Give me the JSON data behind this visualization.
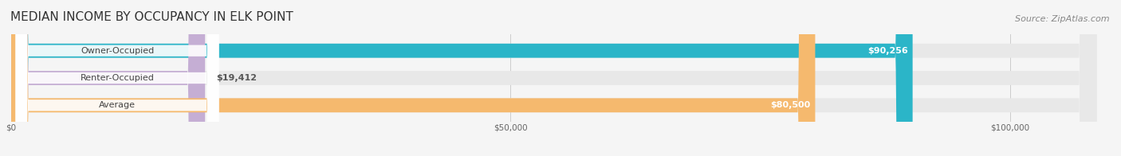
{
  "title": "MEDIAN INCOME BY OCCUPANCY IN ELK POINT",
  "source": "Source: ZipAtlas.com",
  "categories": [
    "Owner-Occupied",
    "Renter-Occupied",
    "Average"
  ],
  "values": [
    90256,
    19412,
    80500
  ],
  "bar_colors": [
    "#2bb5c8",
    "#c5aed4",
    "#f5b96e"
  ],
  "track_color": "#e8e8e8",
  "value_labels": [
    "$90,256",
    "$19,412",
    "$80,500"
  ],
  "x_ticks": [
    0,
    50000,
    100000
  ],
  "x_tick_labels": [
    "$0",
    "$50,000",
    "$100,000"
  ],
  "xlim": [
    0,
    110000
  ],
  "title_fontsize": 11,
  "bar_label_fontsize": 8,
  "value_label_fontsize": 8,
  "source_fontsize": 8,
  "background_color": "#f5f5f5",
  "bar_height": 0.52
}
